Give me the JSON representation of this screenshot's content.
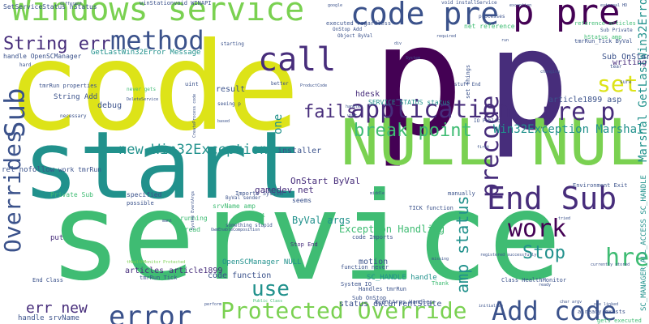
{
  "palette": {
    "yellow": "#dde318",
    "lightgreen": "#7ad151",
    "green": "#3fbc73",
    "teal": "#21918c",
    "blue": "#2c728e",
    "indigo": "#3b528b",
    "purple": "#472d7b",
    "darkpurple": "#440154"
  },
  "words": [
    {
      "text": "code",
      "size": 150,
      "color": "yellow"
    },
    {
      "text": "start",
      "size": 115,
      "color": "teal"
    },
    {
      "text": "service",
      "size": 150,
      "color": "green"
    },
    {
      "text": "p",
      "size": 190,
      "color": "darkpurple"
    },
    {
      "text": "p",
      "size": 170,
      "color": "purple"
    },
    {
      "text": "NULL NULL",
      "size": 78,
      "color": "lightgreen"
    },
    {
      "text": "Windows service",
      "size": 40,
      "color": "lightgreen"
    },
    {
      "text": "code pre",
      "size": 38,
      "color": "indigo"
    },
    {
      "text": "p pre",
      "size": 44,
      "color": "darkpurple"
    },
    {
      "text": "method",
      "size": 32,
      "color": "indigo"
    },
    {
      "text": "call",
      "size": 40,
      "color": "purple"
    },
    {
      "text": "String err",
      "size": 22,
      "color": "purple"
    },
    {
      "text": "application",
      "size": 30,
      "color": "purple"
    },
    {
      "text": "pre p",
      "size": 30,
      "color": "purple"
    },
    {
      "text": "precode",
      "size": 30,
      "color": "purple"
    },
    {
      "text": "set",
      "size": 28,
      "color": "yellow"
    },
    {
      "text": "fails",
      "size": 22,
      "color": "purple"
    },
    {
      "text": "break point",
      "size": 22,
      "color": "green"
    },
    {
      "text": "End Sub",
      "size": 38,
      "color": "purple"
    },
    {
      "text": "work",
      "size": 30,
      "color": "darkpurple"
    },
    {
      "text": "href",
      "size": 30,
      "color": "green"
    },
    {
      "text": "Stop",
      "size": 22,
      "color": "teal"
    },
    {
      "text": "use",
      "size": 26,
      "color": "teal"
    },
    {
      "text": "error",
      "size": 34,
      "color": "indigo"
    },
    {
      "text": "Protected Override",
      "size": 28,
      "color": "lightgreen"
    },
    {
      "text": "Add code",
      "size": 32,
      "color": "indigo"
    },
    {
      "text": "Sub",
      "size": 34,
      "color": "indigo"
    },
    {
      "text": "Overrides",
      "size": 28,
      "color": "indigo"
    },
    {
      "text": "new Win32Exception",
      "size": 17,
      "color": "teal"
    },
    {
      "text": "err new",
      "size": 18,
      "color": "purple"
    },
    {
      "text": "amp status",
      "size": 20,
      "color": "teal"
    },
    {
      "text": "Win32Exception Marshal",
      "size": 14,
      "color": "teal"
    },
    {
      "text": "Marshal GetLastWin32Error",
      "size": 14,
      "color": "teal"
    },
    {
      "text": "SC_MANAGER_ALL_ACCESS SC_HANDLE",
      "size": 9,
      "color": "teal"
    },
    {
      "text": "Exception Handling",
      "size": 12,
      "color": "green"
    },
    {
      "text": "gamedev net",
      "size": 11,
      "color": "purple"
    },
    {
      "text": "OnStart ByVal",
      "size": 11,
      "color": "purple"
    },
    {
      "text": "ByVal args",
      "size": 12,
      "color": "teal"
    },
    {
      "text": "status dwCurrentState",
      "size": 10,
      "color": "indigo"
    },
    {
      "text": "article1899 asp",
      "size": 10,
      "color": "indigo"
    },
    {
      "text": "Sub OnStart",
      "size": 10,
      "color": "indigo"
    },
    {
      "text": "writing",
      "size": 10,
      "color": "purple"
    },
    {
      "text": "one",
      "size": 14,
      "color": "teal"
    },
    {
      "text": "installer",
      "size": 10,
      "color": "indigo"
    },
    {
      "text": "result",
      "size": 10,
      "color": "indigo"
    },
    {
      "text": "debug",
      "size": 10,
      "color": "indigo"
    },
    {
      "text": "hdesk",
      "size": 10,
      "color": "purple"
    },
    {
      "text": "motion",
      "size": 10,
      "color": "indigo"
    },
    {
      "text": "code function",
      "size": 10,
      "color": "indigo"
    },
    {
      "text": "articles article1899",
      "size": 10,
      "color": "purple"
    },
    {
      "text": "OpenSCManager NULL",
      "size": 9,
      "color": "teal"
    },
    {
      "text": "SC_HANDLE handle",
      "size": 9,
      "color": "teal"
    },
    {
      "text": "handle srvName",
      "size": 9,
      "color": "indigo"
    },
    {
      "text": "SetServiceStatus hStatus",
      "size": 8,
      "color": "indigo"
    },
    {
      "text": "handle OpenSCManager",
      "size": 8,
      "color": "indigo"
    },
    {
      "text": "GetLastWin32Error Message",
      "size": 9,
      "color": "teal"
    },
    {
      "text": "tmrRun properties",
      "size": 7,
      "color": "indigo"
    },
    {
      "text": "String Add",
      "size": 9,
      "color": "indigo"
    },
    {
      "text": "rel nofollow",
      "size": 9,
      "color": "indigo"
    },
    {
      "text": "work tmrRun",
      "size": 8,
      "color": "indigo"
    },
    {
      "text": "Private Sub",
      "size": 8,
      "color": "green"
    },
    {
      "text": "specified",
      "size": 8,
      "color": "indigo"
    },
    {
      "text": "possible",
      "size": 7,
      "color": "indigo"
    },
    {
      "text": "seems",
      "size": 8,
      "color": "indigo"
    },
    {
      "text": "Imports System",
      "size": 7,
      "color": "indigo"
    },
    {
      "text": "srvName amp",
      "size": 8,
      "color": "green"
    },
    {
      "text": "running",
      "size": 8,
      "color": "green"
    },
    {
      "text": "thread",
      "size": 8,
      "color": "green"
    },
    {
      "text": "put",
      "size": 9,
      "color": "purple"
    },
    {
      "text": "End Class",
      "size": 7,
      "color": "indigo"
    },
    {
      "text": "tmrRun Tick",
      "size": 7,
      "color": "indigo"
    },
    {
      "text": "Handles tmrRun",
      "size": 7,
      "color": "indigo"
    },
    {
      "text": "code Imports",
      "size": 7,
      "color": "indigo"
    },
    {
      "text": "function never",
      "size": 7,
      "color": "indigo"
    },
    {
      "text": "System IO",
      "size": 7,
      "color": "indigo"
    },
    {
      "text": "Sub OnStop",
      "size": 7,
      "color": "indigo"
    },
    {
      "text": "EventArgs Handles",
      "size": 7,
      "color": "indigo"
    },
    {
      "text": "Thank",
      "size": 7,
      "color": "green"
    },
    {
      "text": "manually",
      "size": 7,
      "color": "indigo"
    },
    {
      "text": "TICK function",
      "size": 7,
      "color": "indigo"
    },
    {
      "text": "Stop End",
      "size": 7,
      "color": "purple"
    },
    {
      "text": "Class HealthMonitor",
      "size": 7,
      "color": "indigo"
    },
    {
      "text": "Environment Exit",
      "size": 7,
      "color": "indigo"
    },
    {
      "text": "already exists",
      "size": 7,
      "color": "indigo"
    },
    {
      "text": "gets executed",
      "size": 7,
      "color": "green"
    },
    {
      "text": "tmrRun_Tick ByVal",
      "size": 7,
      "color": "indigo"
    },
    {
      "text": "hStatus amp",
      "size": 7,
      "color": "green"
    },
    {
      "text": "reference articles",
      "size": 7,
      "color": "green"
    },
    {
      "text": "net reference",
      "size": 8,
      "color": "green"
    },
    {
      "text": "executed regardless",
      "size": 7,
      "color": "indigo"
    },
    {
      "text": "winStationvoid WINAPI",
      "size": 7,
      "color": "indigo"
    },
    {
      "text": "void installService",
      "size": 6,
      "color": "indigo"
    },
    {
      "text": "processes",
      "size": 6,
      "color": "indigo"
    },
    {
      "text": "Object ByVal",
      "size": 6,
      "color": "indigo"
    },
    {
      "text": "OnStop Add",
      "size": 6,
      "color": "indigo"
    },
    {
      "text": "set things",
      "size": 7,
      "color": "indigo"
    },
    {
      "text": "SERVICE_STATUS status",
      "size": 8,
      "color": "teal"
    },
    {
      "text": "IO Public",
      "size": 6,
      "color": "indigo"
    },
    {
      "text": "stuff End",
      "size": 6,
      "color": "indigo"
    },
    {
      "text": "Sub Private",
      "size": 6,
      "color": "indigo"
    },
    {
      "text": "tear",
      "size": 6,
      "color": "indigo"
    },
    {
      "text": "sure",
      "size": 6,
      "color": "indigo"
    },
    {
      "text": "starting",
      "size": 6,
      "color": "indigo"
    },
    {
      "text": "better",
      "size": 6,
      "color": "indigo"
    },
    {
      "text": "uint",
      "size": 7,
      "color": "indigo"
    },
    {
      "text": "hard",
      "size": 6,
      "color": "indigo"
    },
    {
      "text": "necessary",
      "size": 6,
      "color": "indigo"
    },
    {
      "text": "never gets",
      "size": 6,
      "color": "green"
    },
    {
      "text": "seeing p",
      "size": 6,
      "color": "indigo"
    },
    {
      "text": "interval",
      "size": 6,
      "color": "green"
    },
    {
      "text": "something stupid",
      "size": 6,
      "color": "indigo"
    },
    {
      "text": "ByVal sender",
      "size": 6,
      "color": "indigo"
    },
    {
      "text": "System EventArgs",
      "size": 5,
      "color": "indigo"
    },
    {
      "text": "OwmEnableComposition",
      "size": 5,
      "color": "indigo"
    },
    {
      "text": "tHealthMonitor Protected",
      "size": 5,
      "color": "lightgreen"
    },
    {
      "text": "ProductCode",
      "size": 5,
      "color": "indigo"
    },
    {
      "text": "handler",
      "size": 5,
      "color": "indigo"
    },
    {
      "text": "user",
      "size": 5,
      "color": "indigo"
    },
    {
      "text": "middle",
      "size": 5,
      "color": "indigo"
    },
    {
      "text": "first",
      "size": 5,
      "color": "indigo"
    },
    {
      "text": "tried",
      "size": 5,
      "color": "indigo"
    },
    {
      "text": "missing",
      "size": 5,
      "color": "indigo"
    },
    {
      "text": "perform",
      "size": 5,
      "color": "indigo"
    },
    {
      "text": "Public Class",
      "size": 5,
      "color": "green"
    },
    {
      "text": "ready",
      "size": 5,
      "color": "indigo"
    },
    {
      "text": "initialize",
      "size": 5,
      "color": "indigo"
    },
    {
      "text": "one linked",
      "size": 5,
      "color": "indigo"
    },
    {
      "text": "char argv",
      "size": 5,
      "color": "indigo"
    },
    {
      "text": "currently stored",
      "size": 5,
      "color": "indigo"
    },
    {
      "text": "changing",
      "size": 5,
      "color": "indigo"
    },
    {
      "text": "registered successfully",
      "size": 5,
      "color": "indigo"
    },
    {
      "text": "mant",
      "size": 5,
      "color": "indigo"
    },
    {
      "text": "different",
      "size": 5,
      "color": "indigo"
    },
    {
      "text": "google",
      "size": 5,
      "color": "indigo"
    },
    {
      "text": "exception",
      "size": 5,
      "color": "indigo"
    },
    {
      "text": "external HD",
      "size": 5,
      "color": "indigo"
    },
    {
      "text": "required",
      "size": 5,
      "color": "indigo"
    },
    {
      "text": "DeleteService",
      "size": 5,
      "color": "indigo"
    },
    {
      "text": "based",
      "size": 5,
      "color": "indigo"
    },
    {
      "text": "div",
      "size": 5,
      "color": "indigo"
    },
    {
      "text": "run",
      "size": 5,
      "color": "indigo"
    },
    {
      "text": "CreateProcess code",
      "size": 5,
      "color": "indigo"
    },
    {
      "text": "System",
      "size": 5,
      "color": "indigo"
    }
  ]
}
